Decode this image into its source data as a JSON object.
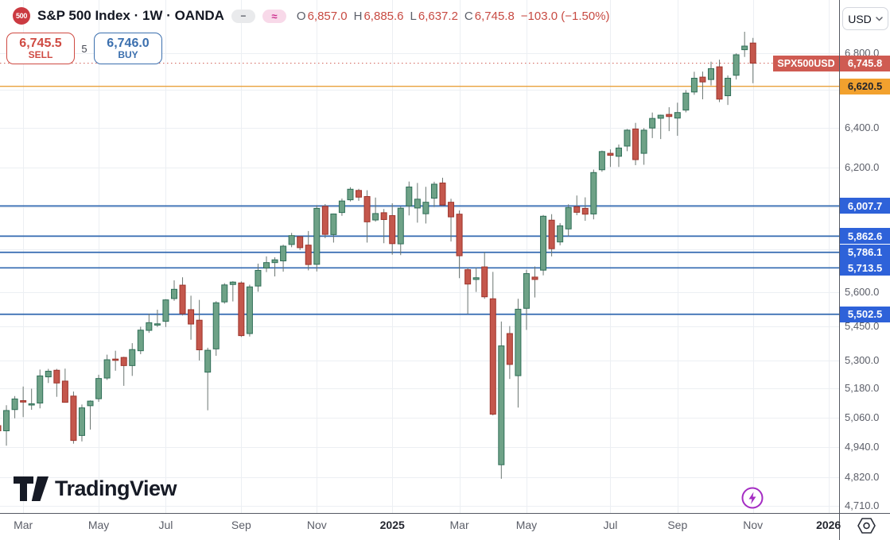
{
  "header": {
    "symbol_badge": "500",
    "title": "S&P 500 Index · 1W · OANDA",
    "status_icons": {
      "dash": "−",
      "approx": "≈"
    },
    "ohlc": {
      "pairs": [
        {
          "k": "O",
          "v": "6,857.0"
        },
        {
          "k": "H",
          "v": "6,885.6"
        },
        {
          "k": "L",
          "v": "6,637.2"
        },
        {
          "k": "C",
          "v": "6,745.8"
        }
      ],
      "change": "−103.0 (−1.50%)"
    }
  },
  "order_panel": {
    "sell_price": "6,745.5",
    "sell_label": "SELL",
    "spread": "5",
    "buy_price": "6,746.0",
    "buy_label": "BUY"
  },
  "currency_selector": {
    "label": "USD"
  },
  "watermark": {
    "text": "TradingView"
  },
  "colors": {
    "up_fill": "#6ea287",
    "up_border": "#2f6e57",
    "down_fill": "#c4574c",
    "down_border": "#9e352c",
    "wick": "#6b7672",
    "grid": "#eceff3",
    "axis_line": "#555962",
    "axis_text": "#5b5e68",
    "blue_line": "#3168b0",
    "blue_badge": "#2e62d9",
    "orange_line": "#e9a13c",
    "orange_badge": "#f2a12e",
    "orange_text": "#1e222d",
    "last_price_red": "#cf5b52",
    "sell_red": "#cf4a42",
    "buy_blue": "#3b6fae",
    "flash_purple": "#a42cc3",
    "pink_accent": "#cc2e8e",
    "sp_badge_red": "#cb3a41"
  },
  "chart_data": {
    "type": "candlestick",
    "symbol": "SPX500USD",
    "timeframe": "1W",
    "candle_fields": [
      "week_start",
      "open",
      "high",
      "low",
      "close"
    ],
    "price_axis": {
      "scale": "log",
      "price_at_pane_top": 6920,
      "price_at_pane_bottom": 4686,
      "tick_labels": [
        {
          "display": "6,800.0",
          "price": 6800
        },
        {
          "display": "6,400.0",
          "price": 6400
        },
        {
          "display": "6,200.0",
          "price": 6200
        },
        {
          "display": "5,600.0",
          "price": 5600
        },
        {
          "display": "5,450.0",
          "price": 5450
        },
        {
          "display": "5,300.0",
          "price": 5300
        },
        {
          "display": "5,180.0",
          "price": 5180
        },
        {
          "display": "5,060.0",
          "price": 5060
        },
        {
          "display": "4,940.0",
          "price": 4940
        },
        {
          "display": "4,820.0",
          "price": 4820
        },
        {
          "display": "4,710.0",
          "price": 4710
        }
      ],
      "grid_prices": [
        6800,
        6600,
        6400,
        6200,
        6000,
        5800,
        5600,
        5450,
        5300,
        5180,
        5060,
        4940,
        4820,
        4710
      ]
    },
    "time_axis": {
      "ticks": [
        {
          "label": "Mar",
          "index": 3,
          "bold": false
        },
        {
          "label": "May",
          "index": 12,
          "bold": false
        },
        {
          "label": "Jul",
          "index": 20,
          "bold": false
        },
        {
          "label": "Sep",
          "index": 29,
          "bold": false
        },
        {
          "label": "Nov",
          "index": 38,
          "bold": false
        },
        {
          "label": "2025",
          "index": 47,
          "bold": true
        },
        {
          "label": "Mar",
          "index": 55,
          "bold": false
        },
        {
          "label": "May",
          "index": 63,
          "bold": false
        },
        {
          "label": "Jul",
          "index": 73,
          "bold": false
        },
        {
          "label": "Sep",
          "index": 81,
          "bold": false
        },
        {
          "label": "Nov",
          "index": 90,
          "bold": false
        },
        {
          "label": "2026",
          "index": 99,
          "bold": true
        }
      ]
    },
    "last_price": {
      "symbol_label": "SPX500USD",
      "value": 6745.8,
      "display": "6,745.8",
      "direction": "down"
    },
    "levels": [
      {
        "display": "6,620.5",
        "price": 6620.5,
        "style": "orange"
      },
      {
        "display": "6,007.7",
        "price": 6007.7,
        "style": "blue"
      },
      {
        "display": "5,862.6",
        "price": 5862.6,
        "style": "blue"
      },
      {
        "display": "5,786.1",
        "price": 5786.1,
        "style": "blue"
      },
      {
        "display": "5,713.5",
        "price": 5713.5,
        "style": "blue"
      },
      {
        "display": "5,502.5",
        "price": 5502.5,
        "style": "blue"
      }
    ],
    "candles": [
      [
        "2024-02-12",
        5027,
        5058,
        4920,
        5006
      ],
      [
        "2024-02-19",
        5006,
        5111,
        4946,
        5089
      ],
      [
        "2024-02-26",
        5093,
        5149,
        5057,
        5137
      ],
      [
        "2024-03-04",
        5130,
        5189,
        5062,
        5124
      ],
      [
        "2024-03-11",
        5116,
        5180,
        5092,
        5117
      ],
      [
        "2024-03-18",
        5120,
        5261,
        5098,
        5234
      ],
      [
        "2024-03-25",
        5230,
        5264,
        5204,
        5254
      ],
      [
        "2024-04-01",
        5258,
        5264,
        5146,
        5204
      ],
      [
        "2024-04-08",
        5212,
        5265,
        5138,
        5123
      ],
      [
        "2024-04-15",
        5149,
        5168,
        4954,
        4967
      ],
      [
        "2024-04-22",
        4987,
        5114,
        4963,
        5100
      ],
      [
        "2024-04-29",
        5109,
        5131,
        5011,
        5128
      ],
      [
        "2024-05-06",
        5138,
        5239,
        5125,
        5223
      ],
      [
        "2024-05-13",
        5225,
        5325,
        5217,
        5303
      ],
      [
        "2024-05-20",
        5306,
        5342,
        5256,
        5305
      ],
      [
        "2024-05-27",
        5313,
        5316,
        5192,
        5278
      ],
      [
        "2024-06-03",
        5278,
        5375,
        5234,
        5347
      ],
      [
        "2024-06-10",
        5342,
        5447,
        5327,
        5432
      ],
      [
        "2024-06-17",
        5431,
        5505,
        5420,
        5465
      ],
      [
        "2024-06-24",
        5460,
        5523,
        5446,
        5460
      ],
      [
        "2024-07-01",
        5471,
        5570,
        5446,
        5567
      ],
      [
        "2024-07-08",
        5573,
        5656,
        5563,
        5615
      ],
      [
        "2024-07-15",
        5634,
        5670,
        5497,
        5505
      ],
      [
        "2024-07-22",
        5523,
        5586,
        5390,
        5459
      ],
      [
        "2024-07-29",
        5476,
        5567,
        5300,
        5346
      ],
      [
        "2024-08-05",
        5250,
        5355,
        5090,
        5344
      ],
      [
        "2024-08-12",
        5350,
        5561,
        5320,
        5554
      ],
      [
        "2024-08-19",
        5558,
        5643,
        5550,
        5635
      ],
      [
        "2024-08-26",
        5637,
        5652,
        5560,
        5648
      ],
      [
        "2024-09-02",
        5644,
        5651,
        5402,
        5408
      ],
      [
        "2024-09-09",
        5417,
        5636,
        5404,
        5626
      ],
      [
        "2024-09-16",
        5630,
        5733,
        5604,
        5702
      ],
      [
        "2024-09-23",
        5713,
        5767,
        5694,
        5738
      ],
      [
        "2024-09-30",
        5738,
        5763,
        5674,
        5751
      ],
      [
        "2024-10-07",
        5746,
        5822,
        5696,
        5815
      ],
      [
        "2024-10-14",
        5823,
        5878,
        5810,
        5865
      ],
      [
        "2024-10-21",
        5860,
        5863,
        5797,
        5808
      ],
      [
        "2024-10-28",
        5820,
        5887,
        5702,
        5729
      ],
      [
        "2024-11-04",
        5730,
        6012,
        5697,
        5996
      ],
      [
        "2024-11-11",
        6006,
        6017,
        5853,
        5871
      ],
      [
        "2024-11-18",
        5870,
        5971,
        5832,
        5969
      ],
      [
        "2024-11-25",
        5976,
        6044,
        5960,
        6032
      ],
      [
        "2024-12-02",
        6038,
        6100,
        6030,
        6090
      ],
      [
        "2024-12-09",
        6084,
        6092,
        6033,
        6051
      ],
      [
        "2024-12-16",
        6054,
        6085,
        5832,
        5931
      ],
      [
        "2024-12-23",
        5940,
        6049,
        5932,
        5971
      ],
      [
        "2024-12-30",
        5975,
        5993,
        5829,
        5942
      ],
      [
        "2025-01-06",
        5961,
        6021,
        5775,
        5827
      ],
      [
        "2025-01-13",
        5826,
        6005,
        5773,
        5997
      ],
      [
        "2025-01-20",
        6008,
        6128,
        5962,
        6101
      ],
      [
        "2025-01-27",
        5998,
        6121,
        5927,
        6041
      ],
      [
        "2025-02-03",
        5970,
        6102,
        5923,
        6026
      ],
      [
        "2025-02-10",
        6046,
        6127,
        6003,
        6115
      ],
      [
        "2025-02-17",
        6121,
        6147,
        6008,
        6013
      ],
      [
        "2025-02-24",
        6026,
        6043,
        5837,
        5955
      ],
      [
        "2025-03-03",
        5968,
        5986,
        5666,
        5770
      ],
      [
        "2025-03-10",
        5705,
        5715,
        5504,
        5639
      ],
      [
        "2025-03-17",
        5660,
        5715,
        5603,
        5668
      ],
      [
        "2025-03-24",
        5718,
        5787,
        5572,
        5581
      ],
      [
        "2025-03-31",
        5572,
        5695,
        5069,
        5074
      ],
      [
        "2025-04-07",
        4870,
        5470,
        4815,
        5363
      ],
      [
        "2025-04-14",
        5417,
        5450,
        5221,
        5283
      ],
      [
        "2025-04-21",
        5235,
        5572,
        5101,
        5525
      ],
      [
        "2025-04-28",
        5529,
        5705,
        5433,
        5687
      ],
      [
        "2025-05-05",
        5671,
        5720,
        5578,
        5660
      ],
      [
        "2025-05-12",
        5703,
        5964,
        5679,
        5958
      ],
      [
        "2025-05-19",
        5939,
        5968,
        5767,
        5803
      ],
      [
        "2025-05-26",
        5835,
        5925,
        5819,
        5912
      ],
      [
        "2025-06-02",
        5897,
        6016,
        5861,
        6000
      ],
      [
        "2025-06-09",
        6004,
        6059,
        5963,
        5977
      ],
      [
        "2025-06-16",
        5996,
        6050,
        5936,
        5968
      ],
      [
        "2025-06-23",
        5969,
        6188,
        5943,
        6173
      ],
      [
        "2025-06-30",
        6187,
        6284,
        6177,
        6279
      ],
      [
        "2025-07-07",
        6270,
        6290,
        6201,
        6260
      ],
      [
        "2025-07-14",
        6255,
        6315,
        6201,
        6297
      ],
      [
        "2025-07-21",
        6307,
        6395,
        6281,
        6389
      ],
      [
        "2025-07-28",
        6395,
        6427,
        6210,
        6238
      ],
      [
        "2025-08-04",
        6270,
        6400,
        6212,
        6389
      ],
      [
        "2025-08-11",
        6400,
        6481,
        6348,
        6450
      ],
      [
        "2025-08-18",
        6451,
        6470,
        6343,
        6467
      ],
      [
        "2025-08-25",
        6471,
        6509,
        6384,
        6460
      ],
      [
        "2025-09-01",
        6452,
        6533,
        6360,
        6481
      ],
      [
        "2025-09-08",
        6494,
        6600,
        6482,
        6584
      ],
      [
        "2025-09-15",
        6590,
        6699,
        6575,
        6664
      ],
      [
        "2025-09-22",
        6670,
        6700,
        6551,
        6644
      ],
      [
        "2025-09-29",
        6657,
        6754,
        6625,
        6716
      ],
      [
        "2025-10-06",
        6726,
        6765,
        6536,
        6552
      ],
      [
        "2025-10-13",
        6570,
        6679,
        6521,
        6664
      ],
      [
        "2025-10-20",
        6680,
        6800,
        6657,
        6792
      ],
      [
        "2025-10-27",
        6820,
        6920,
        6780,
        6840
      ],
      [
        "2025-11-03",
        6857,
        6885.6,
        6637.2,
        6745.8
      ]
    ]
  }
}
